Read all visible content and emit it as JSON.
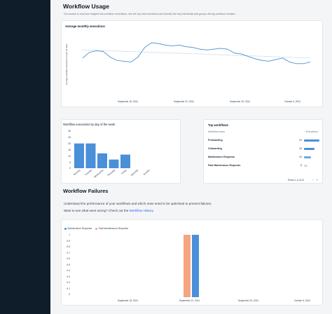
{
  "usage": {
    "title": "Workflow Usage",
    "subtitle": "Get access to real-time insights into workflow executions, see the top used workflows and identify the key individuals and groups driving workflow creation."
  },
  "monthly": {
    "title": "Average monthly executions",
    "ylabel": "Average workflow executions in last 30 days",
    "xticks": [
      "September 15, 2024",
      "September 22, 2024",
      "September 29, 2024",
      "October 6, 2024"
    ]
  },
  "weekday": {
    "title": "Workflow executions by day of the week",
    "yticks": [
      "30",
      "25",
      "20",
      "15",
      "10",
      "5",
      "0"
    ]
  },
  "top": {
    "title": "Top workflows",
    "col_name": "Workflow name",
    "col_exec": "Executions",
    "rows": [
      {
        "name": "Preboarding",
        "value": "22"
      },
      {
        "name": "Onboarding",
        "value": "15"
      },
      {
        "name": "Maintenance Requests",
        "value": "10"
      },
      {
        "name": "Paid Maintenance Requests",
        "value": "5"
      }
    ],
    "pagination": "Rows 1-4 of 11"
  },
  "failures": {
    "title": "Workflow Failures",
    "desc": "Understand the performance of your workflows and which ones need to be optimised to prevent failures.",
    "prompt": "Want to see what went wrong? Check out the",
    "link": "Workflow History",
    "legend": [
      "Maintenance Requests",
      "Paid Maintenance Requests"
    ],
    "yticks": [
      "1",
      "0.9",
      "0.8",
      "0.7",
      "0.6",
      "0.5",
      "0.4",
      "0.3",
      "0.2",
      "0.1",
      "0"
    ],
    "xticks": [
      "September 15, 2024",
      "September 22, 2024",
      "September 29, 2024",
      "October 6, 2024"
    ]
  },
  "chart_data": [
    {
      "type": "line",
      "title": "Average monthly executions",
      "ylabel": "Average workflow executions in last 30 days",
      "x": [
        "2024-09-08",
        "2024-09-09",
        "2024-09-10",
        "2024-09-11",
        "2024-09-12",
        "2024-09-13",
        "2024-09-14",
        "2024-09-15",
        "2024-09-16",
        "2024-09-17",
        "2024-09-18",
        "2024-09-19",
        "2024-09-20",
        "2024-09-21",
        "2024-09-22",
        "2024-09-23",
        "2024-09-24",
        "2024-09-25",
        "2024-09-26",
        "2024-09-27",
        "2024-09-28",
        "2024-09-29",
        "2024-09-30",
        "2024-10-01",
        "2024-10-02",
        "2024-10-03",
        "2024-10-04",
        "2024-10-05",
        "2024-10-06",
        "2024-10-07",
        "2024-10-08",
        "2024-10-09",
        "2024-10-10",
        "2024-10-11"
      ],
      "series": [
        {
          "values": [
            55,
            62,
            64,
            63,
            56,
            52,
            51,
            50,
            56,
            68,
            74,
            73,
            71,
            70,
            71,
            69,
            68,
            66,
            65,
            66,
            67,
            66,
            61,
            60,
            57,
            54,
            52,
            51,
            53,
            55,
            50,
            48,
            48,
            50
          ]
        }
      ],
      "trend_line": true,
      "colors": {
        "line": "#5b9bd5",
        "trend": "#a8c7e8"
      }
    },
    {
      "type": "bar",
      "title": "Workflow executions by day of the week",
      "categories": [
        "Monday",
        "Tuesday",
        "Wednesday",
        "Thursday",
        "Friday",
        "Saturday",
        "Sunday"
      ],
      "values": [
        20,
        20,
        12,
        7,
        11,
        0,
        0
      ],
      "ylim": [
        0,
        30
      ],
      "colors": {
        "bar": "#4a90d9"
      }
    },
    {
      "type": "bar",
      "title": "",
      "categories": [
        "2024-10-01"
      ],
      "series": [
        {
          "name": "Paid Maintenance Requests",
          "values": [
            1
          ],
          "color": "#f4a582"
        },
        {
          "name": "Maintenance Requests",
          "values": [
            1
          ],
          "color": "#4a90d9"
        }
      ],
      "ylim": [
        0,
        1
      ],
      "legend": "top-left"
    }
  ]
}
